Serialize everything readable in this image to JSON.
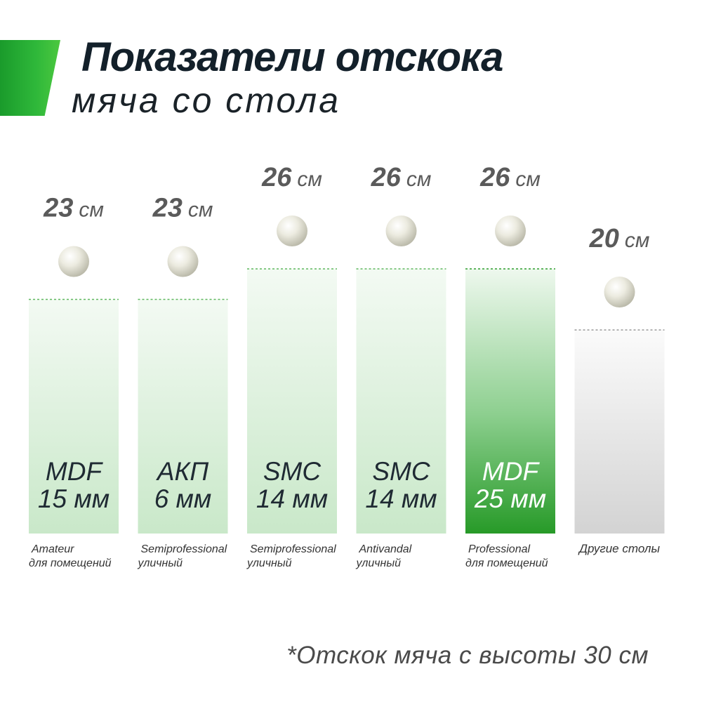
{
  "header": {
    "title": "Показатели отскока",
    "subtitle": "мяча со стола"
  },
  "footnote": "*Отскок мяча с высоты 30 см",
  "colors": {
    "accent": "#2aa52f",
    "bar_light": "#d3edd3",
    "bar_highlight": "#2f9e2f",
    "bar_other": "#d6d6d6",
    "value_text": "#5a5a5a",
    "bar_label_dark": "#1f2a33",
    "bar_label_light": "#ffffff"
  },
  "chart_data": {
    "type": "bar",
    "unit": "см",
    "categories": [
      {
        "material": "MDF",
        "thickness": "15 мм",
        "class": "Amateur",
        "usage": "для помещений"
      },
      {
        "material": "АКП",
        "thickness": "6 мм",
        "class": "Semiprofessional",
        "usage": "уличный"
      },
      {
        "material": "SMC",
        "thickness": "14 мм",
        "class": "Semiprofessional",
        "usage": "уличный"
      },
      {
        "material": "SMC",
        "thickness": "14 мм",
        "class": "Antivandal",
        "usage": "уличный"
      },
      {
        "material": "MDF",
        "thickness": "25 мм",
        "class": "Professional",
        "usage": "для помещений"
      },
      {
        "material": "",
        "thickness": "",
        "class": "Другие столы",
        "usage": ""
      }
    ],
    "values": [
      23,
      23,
      26,
      26,
      26,
      20
    ],
    "highlight_index": 4,
    "other_index": 5,
    "ball_icon": "ping-pong-ball-icon"
  }
}
